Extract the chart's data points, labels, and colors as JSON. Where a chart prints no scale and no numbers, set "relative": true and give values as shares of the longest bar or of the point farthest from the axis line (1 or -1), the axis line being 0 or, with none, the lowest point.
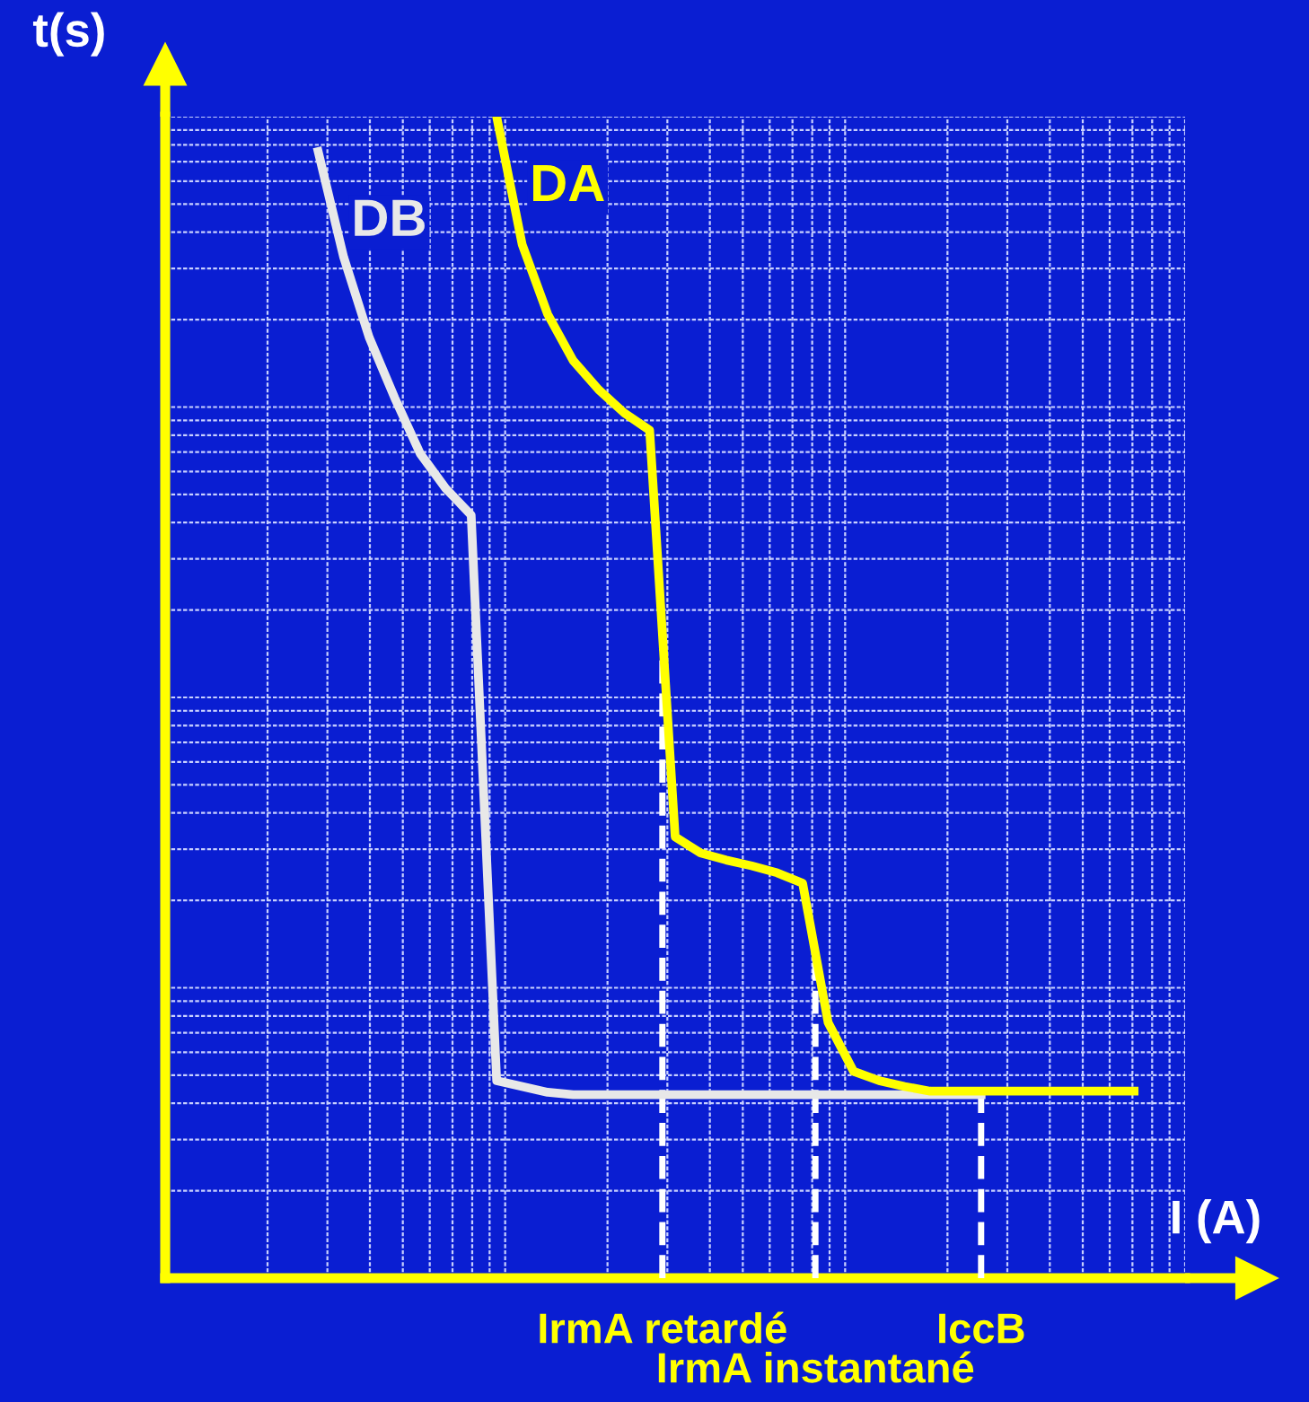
{
  "chart_data": {
    "type": "line",
    "relative": true,
    "xlabel": "I (A)",
    "ylabel": "t(s)",
    "grid": true,
    "legend": false,
    "categories": [
      null,
      null,
      null,
      null,
      null,
      null,
      null,
      null,
      null,
      null,
      null,
      null,
      null,
      null,
      null,
      null,
      null,
      null,
      null,
      null,
      null,
      null,
      null,
      null,
      null,
      null,
      null,
      null,
      null,
      null,
      null,
      null,
      null,
      null,
      null,
      null,
      null,
      null,
      null,
      null,
      null
    ],
    "series": [
      {
        "name": "DB",
        "color": "#e8e8e8",
        "values": [
          null,
          null,
          null,
          null,
          null,
          null,
          0.97,
          0.879,
          0.81,
          0.758,
          0.71,
          0.68,
          0.657,
          0.17,
          0.165,
          0.16,
          0.158,
          0.158,
          0.158,
          0.158,
          0.158,
          0.158,
          0.158,
          0.158,
          0.158,
          0.158,
          0.158,
          0.158,
          0.158,
          0.158,
          0.158,
          0.158,
          0.158,
          null,
          null,
          null,
          null,
          null,
          null,
          null,
          null
        ]
      },
      {
        "name": "DA",
        "color": "#ffff00",
        "values": [
          null,
          null,
          null,
          null,
          null,
          null,
          null,
          null,
          null,
          null,
          null,
          null,
          null,
          1.0,
          0.89,
          0.83,
          0.79,
          0.765,
          0.745,
          0.73,
          0.38,
          0.366,
          0.36,
          0.355,
          0.349,
          0.34,
          0.22,
          0.178,
          0.17,
          0.165,
          0.161,
          0.161,
          0.161,
          0.161,
          0.161,
          0.161,
          0.161,
          0.161,
          0.161,
          null,
          null
        ]
      }
    ],
    "annotations": [
      "IrmA retardé",
      "IccB",
      "IrmA instantané"
    ]
  }
}
